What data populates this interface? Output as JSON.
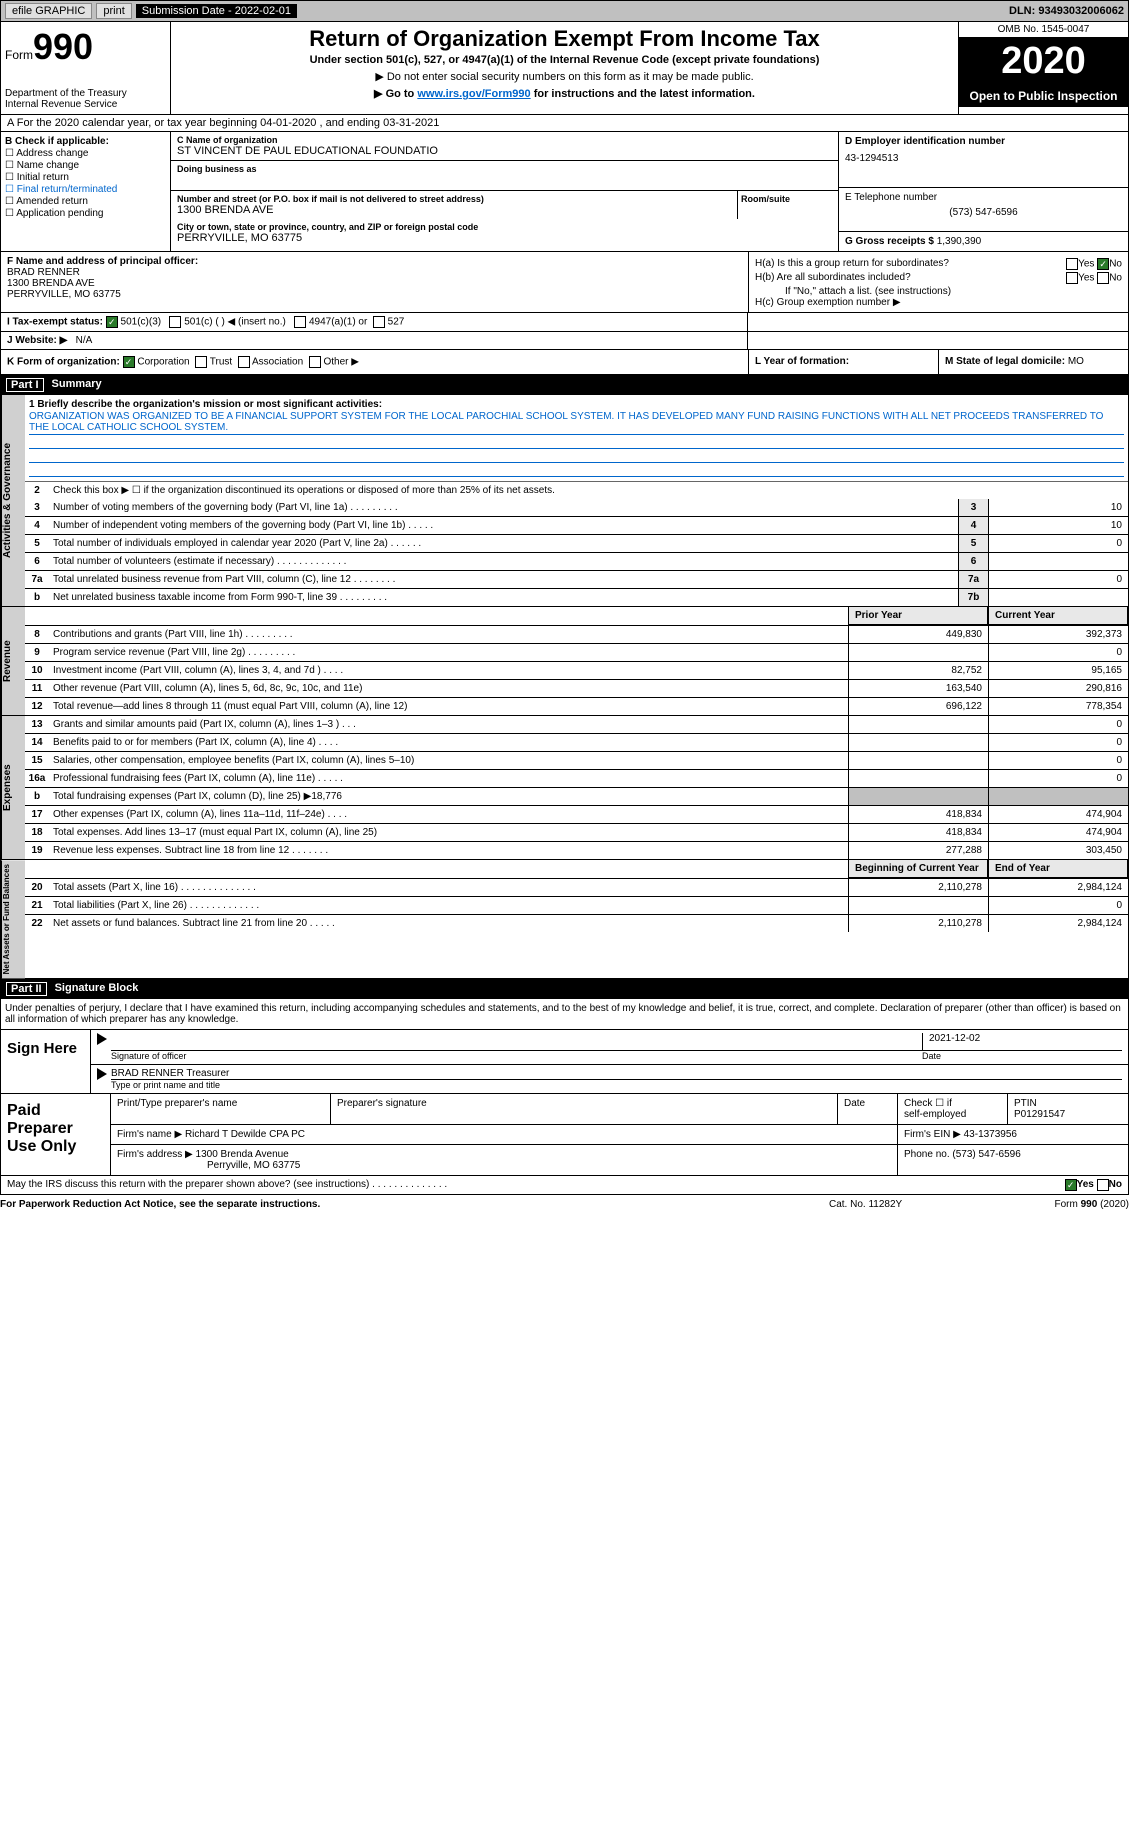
{
  "topbar": {
    "efile": "efile GRAPHIC",
    "print": "print",
    "subdate_label": "Submission Date - ",
    "subdate": "2022-02-01",
    "dln_label": "DLN: ",
    "dln": "93493032006062"
  },
  "header": {
    "form_prefix": "Form",
    "form_no": "990",
    "dept": "Department of the Treasury\nInternal Revenue Service",
    "title": "Return of Organization Exempt From Income Tax",
    "sub": "Under section 501(c), 527, or 4947(a)(1) of the Internal Revenue Code (except private foundations)",
    "note1": "▶ Do not enter social security numbers on this form as it may be made public.",
    "note2_pre": "▶ Go to ",
    "note2_link": "www.irs.gov/Form990",
    "note2_post": " for instructions and the latest information.",
    "omb": "OMB No. 1545-0047",
    "year": "2020",
    "open_pub": "Open to Public Inspection"
  },
  "rowA": "A For the 2020 calendar year, or tax year beginning 04-01-2020     , and ending 03-31-2021",
  "boxB": {
    "label": "B Check if applicable:",
    "items": [
      "Address change",
      "Name change",
      "Initial return",
      "Final return/terminated",
      "Amended return",
      "Application pending"
    ]
  },
  "boxC": {
    "name_label": "C Name of organization",
    "name": "ST VINCENT DE PAUL EDUCATIONAL FOUNDATIO",
    "dba_label": "Doing business as",
    "addr_label": "Number and street (or P.O. box if mail is not delivered to street address)",
    "addr": "1300 BRENDA AVE",
    "room_label": "Room/suite",
    "city_label": "City or town, state or province, country, and ZIP or foreign postal code",
    "city": "PERRYVILLE, MO  63775"
  },
  "boxD": {
    "label": "D Employer identification number",
    "val": "43-1294513"
  },
  "boxE": {
    "label": "E Telephone number",
    "val": "(573) 547-6596"
  },
  "boxG": {
    "label": "G Gross receipts $ ",
    "val": "1,390,390"
  },
  "boxF": {
    "label": "F  Name and address of principal officer:",
    "name": "BRAD RENNER",
    "addr1": "1300 BRENDA AVE",
    "addr2": "PERRYVILLE, MO  63775"
  },
  "boxH": {
    "ha_label": "H(a)  Is this a group return for subordinates?",
    "hb_label": "H(b)  Are all subordinates included?",
    "hb_note": "If \"No,\" attach a list. (see instructions)",
    "hc_label": "H(c)  Group exemption number ▶",
    "yes": "Yes",
    "no": "No"
  },
  "rowI": {
    "label": "I    Tax-exempt status:",
    "o1": "501(c)(3)",
    "o2": "501(c) (  ) ◀ (insert no.)",
    "o3": "4947(a)(1) or",
    "o4": "527"
  },
  "rowJ": {
    "label": "J    Website: ▶",
    "val": "N/A"
  },
  "rowK": {
    "label": "K Form of organization:",
    "o1": "Corporation",
    "o2": "Trust",
    "o3": "Association",
    "o4": "Other ▶"
  },
  "rowL": {
    "label": "L Year of formation:"
  },
  "rowM": {
    "label": "M State of legal domicile:",
    "val": "MO"
  },
  "part1": {
    "num": "Part I",
    "title": "Summary"
  },
  "mission": {
    "label": "1   Briefly describe the organization's mission or most significant activities:",
    "text": "ORGANIZATION WAS ORGANIZED TO BE A FINANCIAL SUPPORT SYSTEM FOR THE LOCAL PAROCHIAL SCHOOL SYSTEM. IT HAS DEVELOPED MANY FUND RAISING FUNCTIONS WITH ALL NET PROCEEDS TRANSFERRED TO THE LOCAL CATHOLIC SCHOOL SYSTEM."
  },
  "gov": {
    "side": "Activities & Governance",
    "l2": "Check this box ▶ ☐  if the organization discontinued its operations or disposed of more than 25% of its net assets.",
    "rows": [
      {
        "n": "3",
        "t": "Number of voting members of the governing body (Part VI, line 1a)   .    .    .    .    .    .    .    .    .",
        "b": "3",
        "v": "10"
      },
      {
        "n": "4",
        "t": "Number of independent voting members of the governing body (Part VI, line 1b)   .    .    .    .    .",
        "b": "4",
        "v": "10"
      },
      {
        "n": "5",
        "t": "Total number of individuals employed in calendar year 2020 (Part V, line 2a)   .    .    .    .    .    .",
        "b": "5",
        "v": "0"
      },
      {
        "n": "6",
        "t": "Total number of volunteers (estimate if necessary)   .    .    .    .    .    .    .    .    .    .    .    .    .",
        "b": "6",
        "v": ""
      },
      {
        "n": "7a",
        "t": "Total unrelated business revenue from Part VIII, column (C), line 12   .    .    .    .    .    .    .    .",
        "b": "7a",
        "v": "0"
      },
      {
        "n": "b",
        "t": "Net unrelated business taxable income from Form 990-T, line 39   .    .    .    .    .    .    .    .    .",
        "b": "7b",
        "v": ""
      }
    ]
  },
  "rev": {
    "side": "Revenue",
    "hdr_prior": "Prior Year",
    "hdr_curr": "Current Year",
    "rows": [
      {
        "n": "8",
        "t": "Contributions and grants (Part VIII, line 1h)   .    .    .    .    .    .    .    .    .",
        "p": "449,830",
        "c": "392,373"
      },
      {
        "n": "9",
        "t": "Program service revenue (Part VIII, line 2g)   .    .    .    .    .    .    .    .    .",
        "p": "",
        "c": "0"
      },
      {
        "n": "10",
        "t": "Investment income (Part VIII, column (A), lines 3, 4, and 7d )   .    .    .    .",
        "p": "82,752",
        "c": "95,165"
      },
      {
        "n": "11",
        "t": "Other revenue (Part VIII, column (A), lines 5, 6d, 8c, 9c, 10c, and 11e)",
        "p": "163,540",
        "c": "290,816"
      },
      {
        "n": "12",
        "t": "Total revenue—add lines 8 through 11 (must equal Part VIII, column (A), line 12)",
        "p": "696,122",
        "c": "778,354"
      }
    ]
  },
  "exp": {
    "side": "Expenses",
    "rows": [
      {
        "n": "13",
        "t": "Grants and similar amounts paid (Part IX, column (A), lines 1–3 )   .    .    .",
        "p": "",
        "c": "0"
      },
      {
        "n": "14",
        "t": "Benefits paid to or for members (Part IX, column (A), line 4)   .    .    .    .",
        "p": "",
        "c": "0"
      },
      {
        "n": "15",
        "t": "Salaries, other compensation, employee benefits (Part IX, column (A), lines 5–10)",
        "p": "",
        "c": "0"
      },
      {
        "n": "16a",
        "t": "Professional fundraising fees (Part IX, column (A), line 11e)   .    .    .    .    .",
        "p": "",
        "c": "0"
      },
      {
        "n": "b",
        "t": "Total fundraising expenses (Part IX, column (D), line 25) ▶18,776",
        "p": "GRAY",
        "c": "GRAY"
      },
      {
        "n": "17",
        "t": "Other expenses (Part IX, column (A), lines 11a–11d, 11f–24e)   .    .    .    .",
        "p": "418,834",
        "c": "474,904"
      },
      {
        "n": "18",
        "t": "Total expenses. Add lines 13–17 (must equal Part IX, column (A), line 25)",
        "p": "418,834",
        "c": "474,904"
      },
      {
        "n": "19",
        "t": "Revenue less expenses. Subtract line 18 from line 12   .    .    .    .    .    .    .",
        "p": "277,288",
        "c": "303,450"
      }
    ]
  },
  "net": {
    "side": "Net Assets or Fund Balances",
    "hdr_beg": "Beginning of Current Year",
    "hdr_end": "End of Year",
    "rows": [
      {
        "n": "20",
        "t": "Total assets (Part X, line 16)   .    .    .    .    .    .    .    .    .    .    .    .    .    .",
        "p": "2,110,278",
        "c": "2,984,124"
      },
      {
        "n": "21",
        "t": "Total liabilities (Part X, line 26)   .    .    .    .    .    .    .    .    .    .    .    .    .",
        "p": "",
        "c": "0"
      },
      {
        "n": "22",
        "t": "Net assets or fund balances. Subtract line 21 from line 20   .    .    .    .    .",
        "p": "2,110,278",
        "c": "2,984,124"
      }
    ]
  },
  "part2": {
    "num": "Part II",
    "title": "Signature Block"
  },
  "penalty": "Under penalties of perjury, I declare that I have examined this return, including accompanying schedules and statements, and to the best of my knowledge and belief, it is true, correct, and complete. Declaration of preparer (other than officer) is based on all information of which preparer has any knowledge.",
  "sign": {
    "side": "Sign Here",
    "sig_lbl": "Signature of officer",
    "date_lbl": "Date",
    "date": "2021-12-02",
    "name": "BRAD RENNER  Treasurer",
    "name_lbl": "Type or print name and title"
  },
  "prep": {
    "side": "Paid Preparer Use Only",
    "h1": "Print/Type preparer's name",
    "h2": "Preparer's signature",
    "h3": "Date",
    "h4_a": "Check ☐  if",
    "h4_b": "self-employed",
    "h5": "PTIN",
    "ptin": "P01291547",
    "firm_lbl": "Firm's name     ▶",
    "firm": "Richard T Dewilde CPA PC",
    "ein_lbl": "Firm's EIN ▶",
    "ein": "43-1373956",
    "addr_lbl": "Firm's address ▶",
    "addr1": "1300 Brenda Avenue",
    "addr2": "Perryville, MO  63775",
    "phone_lbl": "Phone no.",
    "phone": "(573) 547-6596"
  },
  "discuss": {
    "text": "May the IRS discuss this return with the preparer shown above? (see instructions)   .    .    .    .    .    .    .    .    .    .    .    .    .    .",
    "yes": "Yes",
    "no": "No"
  },
  "foot": {
    "left": "For Paperwork Reduction Act Notice, see the separate instructions.",
    "mid": "Cat. No. 11282Y",
    "right": "Form 990 (2020)"
  }
}
